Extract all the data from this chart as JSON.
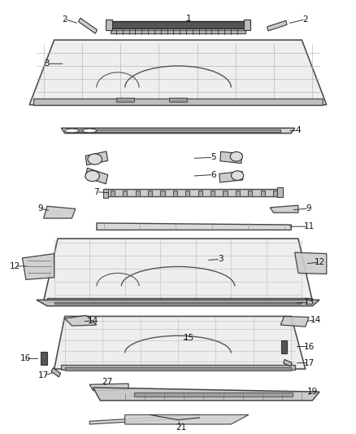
{
  "background_color": "#ffffff",
  "line_color": "#333333",
  "label_color": "#000000",
  "figsize": [
    4.38,
    5.33
  ],
  "dpi": 100
}
